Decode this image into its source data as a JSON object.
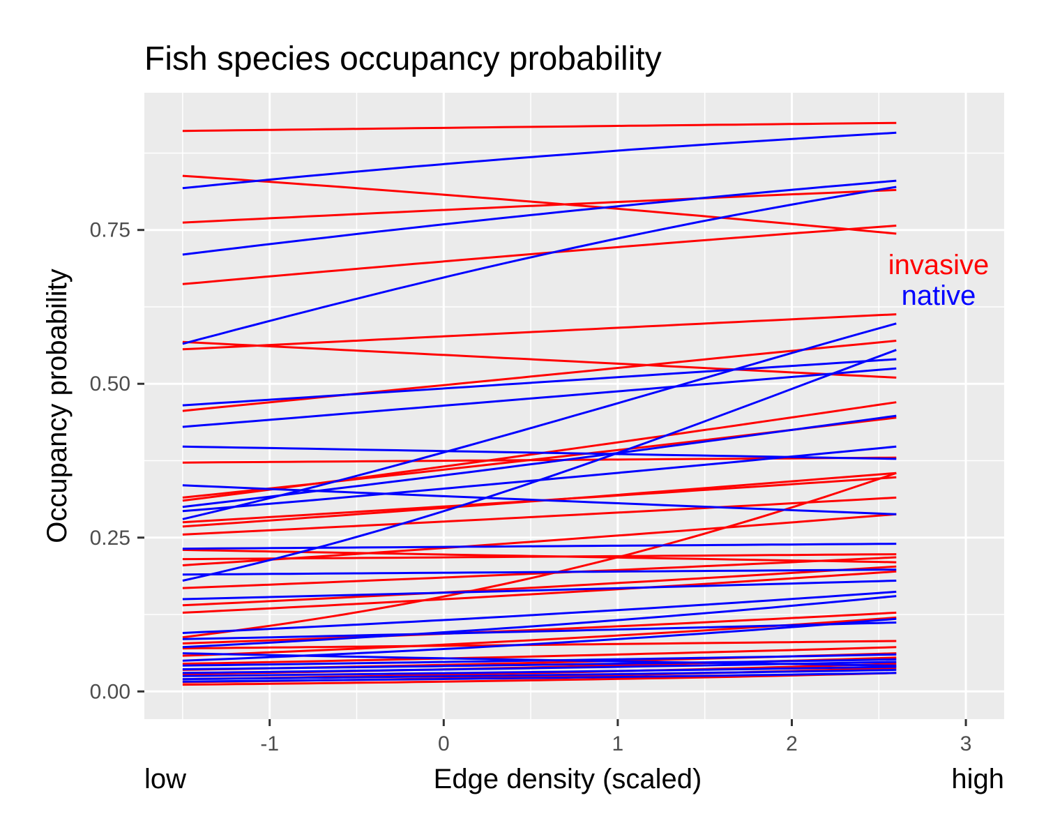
{
  "chart_data": {
    "type": "line",
    "title": "Fish species occupancy probability",
    "xlabel": "Edge density (scaled)",
    "ylabel": "Occupancy probability",
    "x_low_label": "low",
    "x_high_label": "high",
    "xlim": [
      -1.72,
      3.22
    ],
    "ylim": [
      -0.045,
      0.973
    ],
    "x_ticks": [
      {
        "value": -1,
        "label": "-1"
      },
      {
        "value": 0,
        "label": "0"
      },
      {
        "value": 1,
        "label": "1"
      },
      {
        "value": 2,
        "label": "2"
      },
      {
        "value": 3,
        "label": "3"
      }
    ],
    "y_ticks": [
      {
        "value": 0.0,
        "label": "0.00"
      },
      {
        "value": 0.25,
        "label": "0.25"
      },
      {
        "value": 0.5,
        "label": "0.50"
      },
      {
        "value": 0.75,
        "label": "0.75"
      }
    ],
    "grid": true,
    "legend": {
      "placement": "right",
      "entries": [
        {
          "label": "invasive",
          "color": "#ff0000"
        },
        {
          "label": "native",
          "color": "#0000ff"
        }
      ]
    },
    "x_range": [
      -1.5,
      2.6
    ],
    "series": [
      {
        "group": "invasive",
        "start": 0.911,
        "end": 0.924
      },
      {
        "group": "invasive",
        "start": 0.838,
        "end": 0.744
      },
      {
        "group": "invasive",
        "start": 0.762,
        "end": 0.815
      },
      {
        "group": "invasive",
        "start": 0.662,
        "end": 0.757
      },
      {
        "group": "invasive",
        "start": 0.568,
        "end": 0.51
      },
      {
        "group": "invasive",
        "start": 0.556,
        "end": 0.613
      },
      {
        "group": "invasive",
        "start": 0.456,
        "end": 0.57
      },
      {
        "group": "invasive",
        "start": 0.372,
        "end": 0.38
      },
      {
        "group": "invasive",
        "start": 0.315,
        "end": 0.445
      },
      {
        "group": "invasive",
        "start": 0.31,
        "end": 0.47
      },
      {
        "group": "invasive",
        "start": 0.275,
        "end": 0.348
      },
      {
        "group": "invasive",
        "start": 0.268,
        "end": 0.355
      },
      {
        "group": "invasive",
        "start": 0.255,
        "end": 0.315
      },
      {
        "group": "invasive",
        "start": 0.23,
        "end": 0.21
      },
      {
        "group": "invasive",
        "start": 0.215,
        "end": 0.223
      },
      {
        "group": "invasive",
        "start": 0.205,
        "end": 0.288
      },
      {
        "group": "invasive",
        "start": 0.168,
        "end": 0.218
      },
      {
        "group": "invasive",
        "start": 0.14,
        "end": 0.203
      },
      {
        "group": "invasive",
        "start": 0.128,
        "end": 0.195
      },
      {
        "group": "invasive",
        "start": 0.088,
        "end": 0.355
      },
      {
        "group": "invasive",
        "start": 0.078,
        "end": 0.128
      },
      {
        "group": "invasive",
        "start": 0.07,
        "end": 0.082
      },
      {
        "group": "invasive",
        "start": 0.058,
        "end": 0.12
      },
      {
        "group": "invasive",
        "start": 0.045,
        "end": 0.072
      },
      {
        "group": "invasive",
        "start": 0.035,
        "end": 0.062
      },
      {
        "group": "invasive",
        "start": 0.028,
        "end": 0.055
      },
      {
        "group": "invasive",
        "start": 0.02,
        "end": 0.045
      },
      {
        "group": "invasive",
        "start": 0.015,
        "end": 0.038
      },
      {
        "group": "invasive",
        "start": 0.011,
        "end": 0.03
      },
      {
        "group": "native",
        "start": 0.818,
        "end": 0.908
      },
      {
        "group": "native",
        "start": 0.71,
        "end": 0.83
      },
      {
        "group": "native",
        "start": 0.565,
        "end": 0.82
      },
      {
        "group": "native",
        "start": 0.465,
        "end": 0.54
      },
      {
        "group": "native",
        "start": 0.43,
        "end": 0.525
      },
      {
        "group": "native",
        "start": 0.398,
        "end": 0.378
      },
      {
        "group": "native",
        "start": 0.335,
        "end": 0.288
      },
      {
        "group": "native",
        "start": 0.3,
        "end": 0.448
      },
      {
        "group": "native",
        "start": 0.293,
        "end": 0.398
      },
      {
        "group": "native",
        "start": 0.28,
        "end": 0.598
      },
      {
        "group": "native",
        "start": 0.232,
        "end": 0.24
      },
      {
        "group": "native",
        "start": 0.19,
        "end": 0.198
      },
      {
        "group": "native",
        "start": 0.18,
        "end": 0.555
      },
      {
        "group": "native",
        "start": 0.15,
        "end": 0.18
      },
      {
        "group": "native",
        "start": 0.095,
        "end": 0.162
      },
      {
        "group": "native",
        "start": 0.085,
        "end": 0.112
      },
      {
        "group": "native",
        "start": 0.072,
        "end": 0.155
      },
      {
        "group": "native",
        "start": 0.062,
        "end": 0.042
      },
      {
        "group": "native",
        "start": 0.05,
        "end": 0.118
      },
      {
        "group": "native",
        "start": 0.042,
        "end": 0.06
      },
      {
        "group": "native",
        "start": 0.036,
        "end": 0.052
      },
      {
        "group": "native",
        "start": 0.03,
        "end": 0.048
      },
      {
        "group": "native",
        "start": 0.025,
        "end": 0.04
      },
      {
        "group": "native",
        "start": 0.02,
        "end": 0.035
      },
      {
        "group": "native",
        "start": 0.016,
        "end": 0.03
      }
    ]
  }
}
